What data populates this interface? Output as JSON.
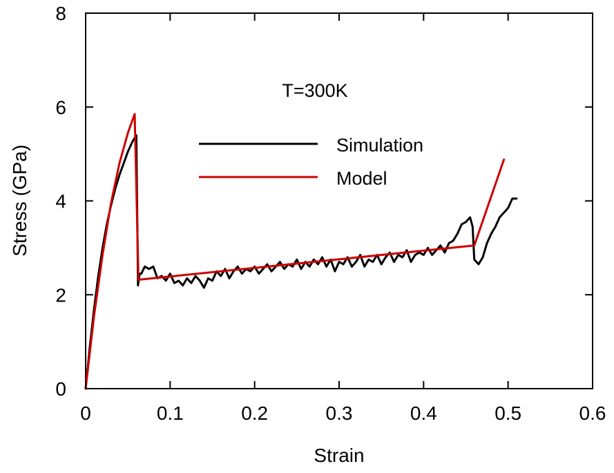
{
  "chart_data": {
    "type": "line",
    "title": "",
    "annotation": "T=300K",
    "xlabel": "Strain",
    "ylabel": "Stress (GPa)",
    "xlim": [
      0,
      0.6
    ],
    "ylim": [
      0,
      8
    ],
    "xticks": [
      0,
      0.1,
      0.2,
      0.3,
      0.4,
      0.5,
      0.6
    ],
    "xtick_labels": [
      "0",
      "0.1",
      "0.2",
      "0.3",
      "0.4",
      "0.5",
      "0.6"
    ],
    "yticks": [
      0,
      2,
      4,
      6,
      8
    ],
    "ytick_labels": [
      "0",
      "2",
      "4",
      "6",
      "8"
    ],
    "grid": false,
    "legend_position": "center",
    "colors": {
      "simulation": "#000000",
      "model": "#cc0000"
    },
    "series": [
      {
        "name": "Simulation",
        "color": "#000000",
        "x": [
          0.0,
          0.005,
          0.01,
          0.015,
          0.02,
          0.025,
          0.03,
          0.035,
          0.04,
          0.045,
          0.05,
          0.055,
          0.06,
          0.062,
          0.064,
          0.066,
          0.07,
          0.075,
          0.08,
          0.085,
          0.09,
          0.095,
          0.1,
          0.105,
          0.11,
          0.115,
          0.12,
          0.125,
          0.13,
          0.135,
          0.14,
          0.145,
          0.15,
          0.155,
          0.16,
          0.165,
          0.17,
          0.175,
          0.18,
          0.185,
          0.19,
          0.195,
          0.2,
          0.205,
          0.21,
          0.215,
          0.22,
          0.225,
          0.23,
          0.235,
          0.24,
          0.245,
          0.25,
          0.255,
          0.26,
          0.265,
          0.27,
          0.275,
          0.28,
          0.285,
          0.29,
          0.295,
          0.3,
          0.305,
          0.31,
          0.315,
          0.32,
          0.325,
          0.33,
          0.335,
          0.34,
          0.345,
          0.35,
          0.355,
          0.36,
          0.365,
          0.37,
          0.375,
          0.38,
          0.385,
          0.39,
          0.395,
          0.4,
          0.405,
          0.41,
          0.415,
          0.42,
          0.425,
          0.43,
          0.435,
          0.44,
          0.445,
          0.45,
          0.455,
          0.458,
          0.46,
          0.465,
          0.47,
          0.475,
          0.48,
          0.485,
          0.49,
          0.495,
          0.5,
          0.505,
          0.51
        ],
        "y": [
          0.0,
          0.9,
          1.7,
          2.4,
          3.0,
          3.5,
          3.9,
          4.25,
          4.55,
          4.8,
          5.05,
          5.25,
          5.4,
          2.2,
          2.45,
          2.45,
          2.6,
          2.55,
          2.6,
          2.35,
          2.4,
          2.3,
          2.45,
          2.25,
          2.3,
          2.2,
          2.35,
          2.25,
          2.4,
          2.3,
          2.15,
          2.35,
          2.3,
          2.5,
          2.4,
          2.55,
          2.35,
          2.5,
          2.6,
          2.45,
          2.55,
          2.5,
          2.6,
          2.45,
          2.55,
          2.65,
          2.5,
          2.6,
          2.7,
          2.55,
          2.65,
          2.6,
          2.75,
          2.55,
          2.7,
          2.6,
          2.75,
          2.65,
          2.8,
          2.6,
          2.75,
          2.5,
          2.7,
          2.65,
          2.8,
          2.6,
          2.7,
          2.85,
          2.6,
          2.75,
          2.7,
          2.85,
          2.65,
          2.8,
          2.9,
          2.7,
          2.85,
          2.8,
          2.95,
          2.7,
          2.85,
          2.9,
          2.85,
          3.0,
          2.85,
          2.95,
          3.05,
          2.9,
          3.1,
          3.15,
          3.3,
          3.5,
          3.55,
          3.65,
          3.45,
          2.75,
          2.65,
          2.8,
          3.1,
          3.3,
          3.45,
          3.65,
          3.75,
          3.85,
          4.05,
          4.05
        ]
      },
      {
        "name": "Model",
        "color": "#cc0000",
        "x": [
          0.0,
          0.01,
          0.02,
          0.03,
          0.04,
          0.05,
          0.058,
          0.0625,
          0.46,
          0.495
        ],
        "y": [
          0.0,
          1.55,
          2.85,
          3.95,
          4.8,
          5.45,
          5.85,
          2.32,
          3.05,
          4.88
        ]
      }
    ]
  }
}
